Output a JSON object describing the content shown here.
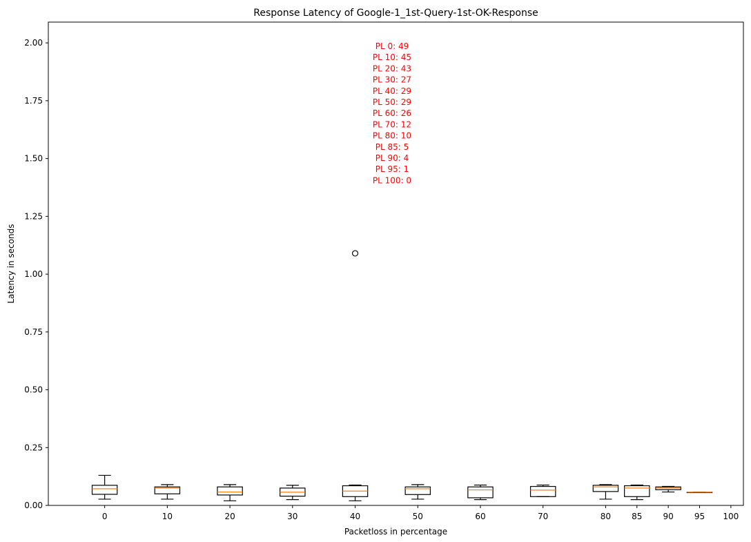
{
  "chart_data": {
    "type": "box",
    "title": "Response Latency of Google-1_1st-Query-1st-OK-Response",
    "xlabel": "Packetloss in percentage",
    "ylabel": "Latency in seconds",
    "ylim": [
      0,
      2.09
    ],
    "yticks": [
      0.0,
      0.25,
      0.5,
      0.75,
      1.0,
      1.25,
      1.5,
      1.75,
      2.0
    ],
    "ytick_labels": [
      "0.00",
      "0.25",
      "0.50",
      "0.75",
      "1.00",
      "1.25",
      "1.50",
      "1.75",
      "2.00"
    ],
    "xlim": [
      -9,
      102
    ],
    "xticks": [
      0,
      10,
      20,
      30,
      40,
      50,
      60,
      70,
      80,
      85,
      90,
      95,
      100
    ],
    "xtick_labels": [
      "0",
      "10",
      "20",
      "30",
      "40",
      "50",
      "60",
      "70",
      "80",
      "85",
      "90",
      "95",
      "100"
    ],
    "grid": false,
    "box_color": "#000000",
    "median_color": "#ff7f0e",
    "annotation_color": "#ff0000",
    "boxes": [
      {
        "x": 0,
        "whislo": 0.027,
        "q1": 0.048,
        "med": 0.072,
        "q3": 0.087,
        "whishi": 0.13,
        "fliers": []
      },
      {
        "x": 10,
        "whislo": 0.027,
        "q1": 0.05,
        "med": 0.075,
        "q3": 0.08,
        "whishi": 0.09,
        "fliers": []
      },
      {
        "x": 20,
        "whislo": 0.02,
        "q1": 0.045,
        "med": 0.058,
        "q3": 0.08,
        "whishi": 0.09,
        "fliers": []
      },
      {
        "x": 30,
        "whislo": 0.025,
        "q1": 0.04,
        "med": 0.057,
        "q3": 0.075,
        "whishi": 0.087,
        "fliers": []
      },
      {
        "x": 40,
        "whislo": 0.02,
        "q1": 0.038,
        "med": 0.062,
        "q3": 0.085,
        "whishi": 0.088,
        "fliers": [
          1.09
        ]
      },
      {
        "x": 50,
        "whislo": 0.027,
        "q1": 0.047,
        "med": 0.072,
        "q3": 0.08,
        "whishi": 0.09,
        "fliers": []
      },
      {
        "x": 60,
        "whislo": 0.025,
        "q1": 0.033,
        "med": 0.067,
        "q3": 0.08,
        "whishi": 0.088,
        "fliers": []
      },
      {
        "x": 70,
        "whislo": 0.038,
        "q1": 0.038,
        "med": 0.066,
        "q3": 0.082,
        "whishi": 0.088,
        "fliers": []
      },
      {
        "x": 80,
        "whislo": 0.027,
        "q1": 0.06,
        "med": 0.08,
        "q3": 0.087,
        "whishi": 0.09,
        "fliers": []
      },
      {
        "x": 85,
        "whislo": 0.025,
        "q1": 0.038,
        "med": 0.075,
        "q3": 0.085,
        "whishi": 0.088,
        "fliers": []
      },
      {
        "x": 90,
        "whislo": 0.058,
        "q1": 0.068,
        "med": 0.075,
        "q3": 0.08,
        "whishi": 0.082,
        "fliers": []
      },
      {
        "x": 95,
        "whislo": 0.057,
        "q1": 0.057,
        "med": 0.057,
        "q3": 0.057,
        "whishi": 0.057,
        "fliers": []
      }
    ],
    "annotations": [
      "PL 0: 49",
      "PL 10: 45",
      "PL 20: 43",
      "PL 30: 27",
      "PL 40: 29",
      "PL 50: 29",
      "PL 60: 26",
      "PL 70: 12",
      "PL 80: 10",
      "PL 85: 5",
      "PL 90: 4",
      "PL 95: 1",
      "PL 100: 0"
    ]
  }
}
